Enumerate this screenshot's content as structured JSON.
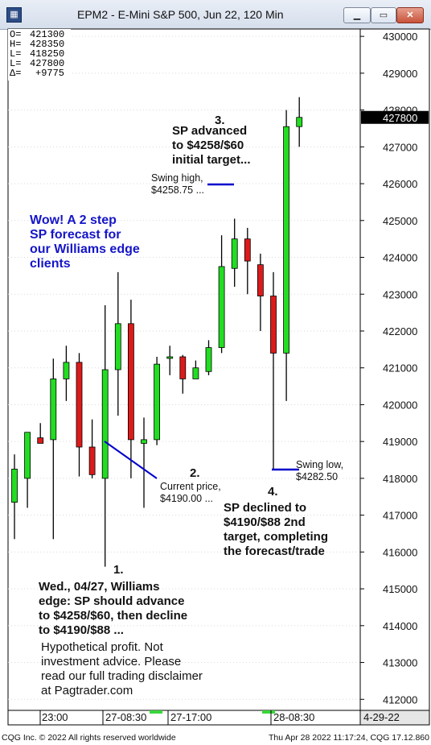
{
  "window": {
    "title": "EPM2 - E-Mini S&P 500, Jun 22, 120 Min",
    "minimize_glyph": "▁",
    "restore_glyph": "▭",
    "close_glyph": "✕"
  },
  "ohlc_box": [
    {
      "label": "O=",
      "value": "421300"
    },
    {
      "label": "H=",
      "value": "428350"
    },
    {
      "label": "L=",
      "value": "418250"
    },
    {
      "label": "L=",
      "value": "427800"
    },
    {
      "label": "Δ=",
      "value": "+9775"
    }
  ],
  "chart_data": {
    "type": "candlestick",
    "title": "EPM2 - E-Mini S&P 500, Jun 22, 120 Min",
    "ylim": [
      411700,
      430200
    ],
    "y_ticks": [
      {
        "label": "430000",
        "value": 430000
      },
      {
        "label": "429000",
        "value": 429000
      },
      {
        "label": "428000",
        "value": 428000
      },
      {
        "label": "427000",
        "value": 427000
      },
      {
        "label": "426000",
        "value": 426000
      },
      {
        "label": "425000",
        "value": 425000
      },
      {
        "label": "424000",
        "value": 424000
      },
      {
        "label": "423000",
        "value": 423000
      },
      {
        "label": "422000",
        "value": 422000
      },
      {
        "label": "421000",
        "value": 421000
      },
      {
        "label": "420000",
        "value": 420000
      },
      {
        "label": "419000",
        "value": 419000
      },
      {
        "label": "418000",
        "value": 418000
      },
      {
        "label": "417000",
        "value": 417000
      },
      {
        "label": "416000",
        "value": 416000
      },
      {
        "label": "415000",
        "value": 415000
      },
      {
        "label": "414000",
        "value": 414000
      },
      {
        "label": "413000",
        "value": 413000
      },
      {
        "label": "412000",
        "value": 412000
      }
    ],
    "last_price_label": "427800",
    "last_price_value": 427800,
    "x_labels": [
      "23:00",
      "27-08:30",
      "27-17:00",
      "28-08:30"
    ],
    "date_box": "4-29-22",
    "candles": [
      {
        "o": 417350,
        "h": 418650,
        "l": 416350,
        "c": 418250
      },
      {
        "o": 418000,
        "h": 419250,
        "l": 417200,
        "c": 419250
      },
      {
        "o": 419100,
        "h": 419500,
        "l": 419000,
        "c": 418950
      },
      {
        "o": 419050,
        "h": 421250,
        "l": 416350,
        "c": 420700
      },
      {
        "o": 420700,
        "h": 421600,
        "l": 420100,
        "c": 421150
      },
      {
        "o": 421150,
        "h": 421400,
        "l": 418050,
        "c": 418850
      },
      {
        "o": 418850,
        "h": 419600,
        "l": 418000,
        "c": 418100
      },
      {
        "o": 418000,
        "h": 422700,
        "l": 415600,
        "c": 420950
      },
      {
        "o": 420950,
        "h": 423600,
        "l": 419700,
        "c": 422200
      },
      {
        "o": 422200,
        "h": 422850,
        "l": 418000,
        "c": 419050
      },
      {
        "o": 418950,
        "h": 419650,
        "l": 417200,
        "c": 419050
      },
      {
        "o": 419050,
        "h": 421300,
        "l": 418900,
        "c": 421100
      },
      {
        "o": 421300,
        "h": 421600,
        "l": 420800,
        "c": 421300
      },
      {
        "o": 421300,
        "h": 421350,
        "l": 420300,
        "c": 420700
      },
      {
        "o": 420700,
        "h": 421200,
        "l": 420800,
        "c": 421000
      },
      {
        "o": 420900,
        "h": 421750,
        "l": 420800,
        "c": 421550
      },
      {
        "o": 421550,
        "h": 424600,
        "l": 421400,
        "c": 423750
      },
      {
        "o": 423700,
        "h": 425050,
        "l": 423200,
        "c": 424500
      },
      {
        "o": 424500,
        "h": 424800,
        "l": 423000,
        "c": 423900
      },
      {
        "o": 423800,
        "h": 424100,
        "l": 422000,
        "c": 422950
      },
      {
        "o": 422950,
        "h": 423600,
        "l": 418250,
        "c": 421400
      },
      {
        "o": 421400,
        "h": 428000,
        "l": 420100,
        "c": 427550
      },
      {
        "o": 427550,
        "h": 428350,
        "l": 427000,
        "c": 427800
      }
    ]
  },
  "annotations": {
    "blue_note": [
      "Wow! A 2 step",
      "SP forecast for",
      "our Williams edge",
      "clients"
    ],
    "note1": {
      "number": "1.",
      "lines": [
        "Wed., 04/27, Williams",
        "edge: SP should advance",
        "to $4258/$60, then decline",
        "to $4190/$88 ..."
      ]
    },
    "note2": {
      "number": "2.",
      "lines": [
        "Current price,",
        "$4190.00 ..."
      ]
    },
    "note3": {
      "number": "3.",
      "lines": [
        "SP advanced",
        "to $4258/$60",
        "initial target..."
      ]
    },
    "note4": {
      "number": "4.",
      "lines": [
        "SP declined to",
        "$4190/$88 2nd",
        "target, completing",
        "the forecast/trade"
      ]
    },
    "swing_high": [
      "Swing high,",
      "$4258.75 ..."
    ],
    "swing_low": [
      "Swing low,",
      "$4282.50"
    ],
    "disclaimer": [
      "Hypothetical profit. Not",
      "investment advice. Please",
      "read our full trading disclaimer",
      "at Pagtrader.com"
    ]
  },
  "footer": {
    "left": "CQG Inc. © 2022 All rights reserved worldwide",
    "right": "Thu Apr 28 2022 11:17:24, CQG 17.12.860"
  },
  "colors": {
    "up_candle": "#22dd22",
    "down_candle": "#dd1a1a",
    "annotation_line": "#0000cc",
    "blue_text": "#1515c8"
  }
}
